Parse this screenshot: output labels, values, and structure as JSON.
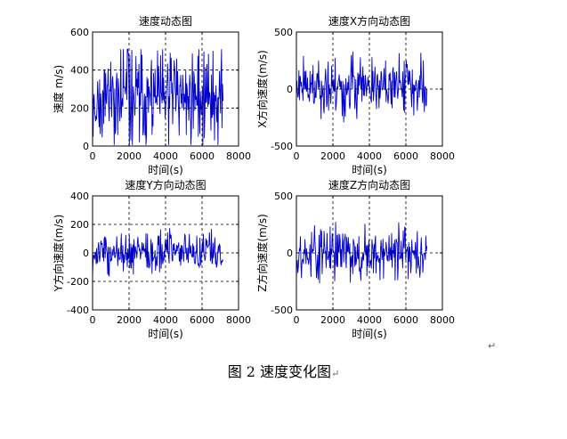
{
  "figure": {
    "caption": "图 2  速度变化图",
    "caption_mark": "↵",
    "para_mark": "↵"
  },
  "chart_data": [
    {
      "type": "line",
      "title": "速度动态图",
      "xlabel": "时间(s)",
      "ylabel": "速度 m/s)",
      "xlim": [
        0,
        8000
      ],
      "ylim": [
        0,
        600
      ],
      "xticks": [
        0,
        2000,
        4000,
        6000,
        8000
      ],
      "yticks": [
        0,
        200,
        400,
        600
      ],
      "grid": true,
      "grid_style": "dashed",
      "color": "#0000cc",
      "x_range": [
        0,
        7150
      ],
      "samples": 260,
      "seed": 11,
      "value_center": 260,
      "value_spread": 230,
      "clip": [
        5,
        510
      ]
    },
    {
      "type": "line",
      "title": "速度X方向动态图",
      "xlabel": "时间(s)",
      "ylabel": "X方向速度(m/s)",
      "xlim": [
        0,
        8000
      ],
      "ylim": [
        -500,
        500
      ],
      "xticks": [
        0,
        2000,
        4000,
        6000,
        8000
      ],
      "yticks": [
        -500,
        0,
        500
      ],
      "grid": true,
      "grid_style": "dashed",
      "color": "#0000cc",
      "x_range": [
        0,
        7150
      ],
      "samples": 260,
      "seed": 23,
      "value_center": 10,
      "value_spread": 200,
      "clip": [
        -470,
        470
      ]
    },
    {
      "type": "line",
      "title": "速度Y方向动态图",
      "xlabel": "时间(s)",
      "ylabel": "Y方向速度(m/s)",
      "xlim": [
        0,
        8000
      ],
      "ylim": [
        -400,
        400
      ],
      "xticks": [
        0,
        2000,
        4000,
        6000,
        8000
      ],
      "yticks": [
        -400,
        -200,
        0,
        200,
        400
      ],
      "grid": true,
      "grid_style": "dashed",
      "color": "#0000cc",
      "x_range": [
        0,
        7150
      ],
      "samples": 260,
      "seed": 37,
      "value_center": 0,
      "value_spread": 110,
      "clip": [
        -260,
        240
      ]
    },
    {
      "type": "line",
      "title": "速度Z方向动态图",
      "xlabel": "时间(s)",
      "ylabel": "Z方向速度(m/s)",
      "xlim": [
        0,
        8000
      ],
      "ylim": [
        -500,
        500
      ],
      "xticks": [
        0,
        2000,
        4000,
        6000,
        8000
      ],
      "yticks": [
        -500,
        0,
        500
      ],
      "grid": true,
      "grid_style": "dashed",
      "color": "#0000cc",
      "x_range": [
        0,
        7150
      ],
      "samples": 260,
      "seed": 53,
      "value_center": 0,
      "value_spread": 190,
      "clip": [
        -440,
        440
      ]
    }
  ]
}
